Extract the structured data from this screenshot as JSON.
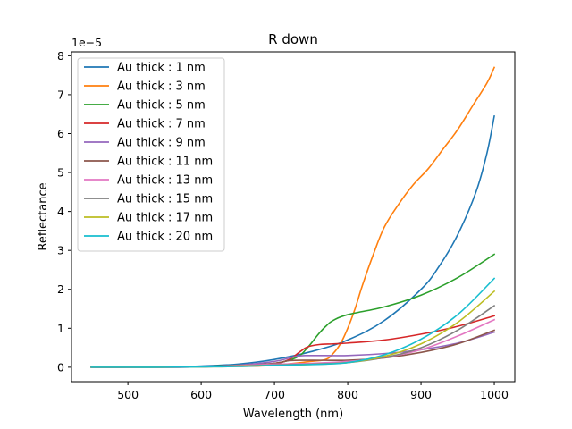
{
  "chart_data": {
    "type": "line",
    "title": "R down",
    "xlabel": "Wavelength (nm)",
    "ylabel": "Reflectance",
    "y_scale_label": "1e−5",
    "xlim": [
      423,
      1028
    ],
    "ylim": [
      -0.37,
      8.1
    ],
    "x_ticks": [
      500,
      600,
      700,
      800,
      900,
      1000
    ],
    "x_tick_labels": [
      "500",
      "600",
      "700",
      "800",
      "900",
      "1000"
    ],
    "y_ticks": [
      0,
      1,
      2,
      3,
      4,
      5,
      6,
      7,
      8
    ],
    "y_tick_labels": [
      "0",
      "1",
      "2",
      "3",
      "4",
      "5",
      "6",
      "7",
      "8"
    ],
    "grid": false,
    "legend_position": "top-left",
    "series": [
      {
        "name": "Au thick : 1 nm",
        "color": "#1f77b4",
        "x": [
          450,
          500,
          550,
          600,
          650,
          700,
          750,
          800,
          850,
          900,
          925,
          950,
          975,
          990,
          1000
        ],
        "y": [
          0.0,
          0.0,
          0.01,
          0.03,
          0.08,
          0.2,
          0.4,
          0.7,
          1.2,
          2.0,
          2.6,
          3.4,
          4.5,
          5.5,
          6.45
        ]
      },
      {
        "name": "Au thick : 3 nm",
        "color": "#ff7f0e",
        "x": [
          450,
          500,
          550,
          600,
          650,
          700,
          750,
          770,
          780,
          790,
          800,
          810,
          820,
          835,
          850,
          870,
          890,
          910,
          930,
          950,
          970,
          990,
          1000
        ],
        "y": [
          0.0,
          0.0,
          0.0,
          0.01,
          0.02,
          0.05,
          0.15,
          0.2,
          0.35,
          0.6,
          1.0,
          1.5,
          2.1,
          2.9,
          3.6,
          4.2,
          4.7,
          5.1,
          5.6,
          6.1,
          6.7,
          7.3,
          7.7
        ]
      },
      {
        "name": "Au thick : 5 nm",
        "color": "#2ca02c",
        "x": [
          450,
          500,
          550,
          600,
          650,
          700,
          730,
          745,
          760,
          770,
          780,
          800,
          850,
          900,
          950,
          1000
        ],
        "y": [
          0.0,
          0.0,
          0.01,
          0.02,
          0.05,
          0.1,
          0.25,
          0.5,
          0.85,
          1.05,
          1.2,
          1.35,
          1.55,
          1.85,
          2.3,
          2.9
        ]
      },
      {
        "name": "Au thick : 7 nm",
        "color": "#d62728",
        "x": [
          450,
          500,
          550,
          600,
          650,
          700,
          720,
          735,
          745,
          760,
          780,
          800,
          850,
          900,
          950,
          1000
        ],
        "y": [
          0.0,
          0.0,
          0.0,
          0.01,
          0.04,
          0.1,
          0.2,
          0.4,
          0.52,
          0.58,
          0.6,
          0.62,
          0.7,
          0.85,
          1.05,
          1.32
        ]
      },
      {
        "name": "Au thick : 9 nm",
        "color": "#9467bd",
        "x": [
          450,
          500,
          550,
          600,
          650,
          700,
          730,
          750,
          800,
          850,
          900,
          950,
          1000
        ],
        "y": [
          0.0,
          0.0,
          0.0,
          0.01,
          0.05,
          0.15,
          0.28,
          0.3,
          0.3,
          0.35,
          0.45,
          0.62,
          0.9
        ]
      },
      {
        "name": "Au thick : 11 nm",
        "color": "#8c564b",
        "x": [
          450,
          500,
          550,
          600,
          650,
          700,
          720,
          750,
          800,
          850,
          900,
          950,
          1000
        ],
        "y": [
          0.0,
          0.0,
          0.0,
          0.01,
          0.04,
          0.1,
          0.17,
          0.18,
          0.18,
          0.24,
          0.38,
          0.6,
          0.95
        ]
      },
      {
        "name": "Au thick : 13 nm",
        "color": "#e377c2",
        "x": [
          450,
          500,
          550,
          600,
          650,
          700,
          750,
          800,
          850,
          900,
          950,
          1000
        ],
        "y": [
          0.0,
          0.0,
          0.0,
          0.01,
          0.04,
          0.08,
          0.1,
          0.15,
          0.25,
          0.45,
          0.8,
          1.22
        ]
      },
      {
        "name": "Au thick : 15 nm",
        "color": "#7f7f7f",
        "x": [
          450,
          500,
          550,
          600,
          650,
          700,
          750,
          800,
          850,
          900,
          950,
          1000
        ],
        "y": [
          0.0,
          0.0,
          0.0,
          0.01,
          0.03,
          0.06,
          0.08,
          0.12,
          0.25,
          0.5,
          0.95,
          1.58
        ]
      },
      {
        "name": "Au thick : 17 nm",
        "color": "#bcbd22",
        "x": [
          450,
          500,
          550,
          600,
          650,
          700,
          750,
          800,
          850,
          900,
          950,
          1000
        ],
        "y": [
          0.0,
          0.0,
          0.0,
          0.01,
          0.03,
          0.05,
          0.07,
          0.12,
          0.28,
          0.6,
          1.15,
          1.95
        ]
      },
      {
        "name": "Au thick : 20 nm",
        "color": "#17becf",
        "x": [
          450,
          500,
          550,
          600,
          650,
          700,
          750,
          800,
          850,
          900,
          950,
          1000
        ],
        "y": [
          0.0,
          0.0,
          0.0,
          0.01,
          0.02,
          0.05,
          0.07,
          0.12,
          0.32,
          0.72,
          1.35,
          2.28
        ]
      }
    ]
  }
}
